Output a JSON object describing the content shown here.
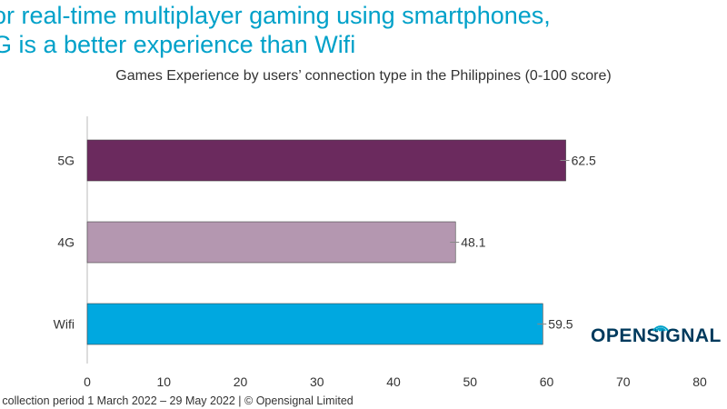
{
  "title_lines": [
    "or real-time multiplayer gaming using smartphones,",
    "G is a better experience than Wifi"
  ],
  "footer": "n collection period 1 March 2022 –  29 May 2022  |  © Opensignal Limited",
  "logo_text": "OPENSIGNAL",
  "chart_data": {
    "type": "bar",
    "orientation": "horizontal",
    "title": "Games Experience by users’ connection type in the Philippines (0-100 score)",
    "categories": [
      "5G",
      "4G",
      "Wifi"
    ],
    "values": [
      62.5,
      48.1,
      59.5
    ],
    "data_labels": [
      "62.5",
      "48.1",
      "59.5"
    ],
    "colors": [
      "#6b2a5e",
      "#b497b0",
      "#00a8e0"
    ],
    "xlim": [
      0,
      80
    ],
    "xticks": [
      0,
      10,
      20,
      30,
      40,
      50,
      60,
      70,
      80
    ],
    "xlabel": "",
    "ylabel": "",
    "grid": false,
    "legend": "none"
  }
}
